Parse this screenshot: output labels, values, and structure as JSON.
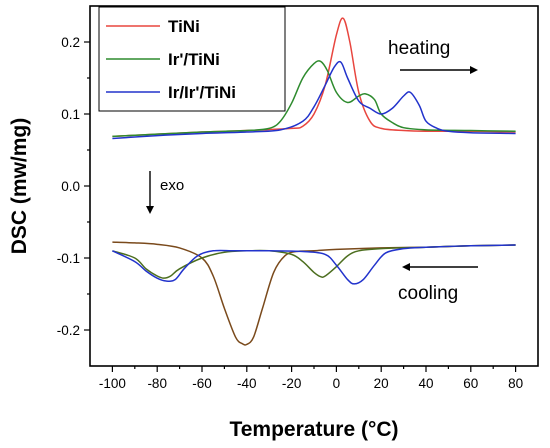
{
  "chart_data": {
    "type": "line",
    "xlabel": "Temperature (°C)",
    "ylabel": "DSC (mw/mg)",
    "xlim": [
      -110,
      90
    ],
    "ylim": [
      -0.25,
      0.25
    ],
    "xticks": [
      -100,
      -80,
      -60,
      -40,
      -20,
      0,
      20,
      40,
      60,
      80
    ],
    "yticks": [
      -0.2,
      -0.1,
      0.0,
      0.1,
      0.2
    ],
    "ytick_labels": [
      "-0.2",
      "-0.1",
      "0.0",
      "0.1",
      "0.2"
    ],
    "legend_position": "top-left",
    "legend": [
      {
        "name": "TiNi",
        "color": "#e8463f"
      },
      {
        "name": "Ir'/TiNi",
        "color": "#2e8b2e"
      },
      {
        "name": "Ir/Ir'/TiNi",
        "color": "#2233cc"
      }
    ],
    "annotations": {
      "heating": "heating",
      "cooling": "cooling",
      "exo": "exo"
    },
    "series": [
      {
        "name": "TiNi",
        "segment": "heating",
        "color": "#e8463f",
        "x": [
          -100,
          -80,
          -60,
          -40,
          -20,
          -15,
          -10,
          -5,
          0,
          3,
          6,
          10,
          15,
          20,
          30,
          40,
          60,
          80
        ],
        "y": [
          0.069,
          0.072,
          0.075,
          0.077,
          0.08,
          0.083,
          0.1,
          0.14,
          0.21,
          0.233,
          0.2,
          0.13,
          0.09,
          0.08,
          0.077,
          0.076,
          0.076,
          0.075
        ]
      },
      {
        "name": "Ir'/TiNi",
        "segment": "heating",
        "color": "#2e8b2e",
        "x": [
          -100,
          -80,
          -60,
          -40,
          -30,
          -25,
          -20,
          -15,
          -10,
          -7,
          -4,
          0,
          5,
          10,
          13,
          17,
          20,
          25,
          30,
          40,
          60,
          80
        ],
        "y": [
          0.069,
          0.072,
          0.075,
          0.077,
          0.08,
          0.09,
          0.115,
          0.15,
          0.17,
          0.173,
          0.16,
          0.13,
          0.116,
          0.125,
          0.128,
          0.12,
          0.1,
          0.088,
          0.081,
          0.078,
          0.077,
          0.076
        ]
      },
      {
        "name": "Ir/Ir'/TiNi",
        "segment": "heating",
        "color": "#2233cc",
        "x": [
          -100,
          -80,
          -60,
          -40,
          -25,
          -15,
          -10,
          -5,
          -1,
          2,
          5,
          10,
          15,
          20,
          25,
          30,
          33,
          37,
          40,
          45,
          50,
          60,
          80
        ],
        "y": [
          0.066,
          0.07,
          0.073,
          0.075,
          0.078,
          0.09,
          0.11,
          0.14,
          0.165,
          0.172,
          0.15,
          0.118,
          0.108,
          0.1,
          0.108,
          0.125,
          0.13,
          0.112,
          0.09,
          0.08,
          0.076,
          0.074,
          0.073
        ]
      },
      {
        "name": "TiNi (cooling)",
        "segment": "cooling",
        "color": "#7a4a1c",
        "x": [
          -100,
          -90,
          -80,
          -70,
          -60,
          -55,
          -50,
          -45,
          -42,
          -40,
          -37,
          -33,
          -28,
          -23,
          -18,
          -10,
          0,
          20,
          40,
          60,
          80
        ],
        "y": [
          -0.078,
          -0.079,
          -0.081,
          -0.086,
          -0.1,
          -0.125,
          -0.17,
          -0.21,
          -0.219,
          -0.22,
          -0.21,
          -0.17,
          -0.12,
          -0.097,
          -0.091,
          -0.09,
          -0.088,
          -0.086,
          -0.085,
          -0.083,
          -0.082
        ]
      },
      {
        "name": "Ir'/TiNi (cooling)",
        "segment": "cooling",
        "color": "#4c6e1f",
        "x": [
          -100,
          -90,
          -85,
          -80,
          -77,
          -74,
          -70,
          -60,
          -50,
          -40,
          -30,
          -20,
          -15,
          -10,
          -7,
          -5,
          0,
          5,
          10,
          20,
          40,
          60,
          80
        ],
        "y": [
          -0.09,
          -0.1,
          -0.115,
          -0.125,
          -0.128,
          -0.125,
          -0.115,
          -0.1,
          -0.092,
          -0.09,
          -0.09,
          -0.095,
          -0.105,
          -0.12,
          -0.126,
          -0.125,
          -0.112,
          -0.097,
          -0.09,
          -0.087,
          -0.085,
          -0.083,
          -0.082
        ]
      },
      {
        "name": "Ir/Ir'/TiNi (cooling)",
        "segment": "cooling",
        "color": "#2233cc",
        "x": [
          -100,
          -90,
          -85,
          -80,
          -76,
          -72,
          -68,
          -62,
          -55,
          -45,
          -30,
          -15,
          -5,
          0,
          5,
          8,
          12,
          17,
          22,
          30,
          40,
          60,
          80
        ],
        "y": [
          -0.09,
          -0.105,
          -0.118,
          -0.128,
          -0.132,
          -0.13,
          -0.115,
          -0.097,
          -0.09,
          -0.09,
          -0.09,
          -0.091,
          -0.095,
          -0.11,
          -0.13,
          -0.136,
          -0.13,
          -0.11,
          -0.093,
          -0.087,
          -0.085,
          -0.083,
          -0.082
        ]
      }
    ]
  }
}
